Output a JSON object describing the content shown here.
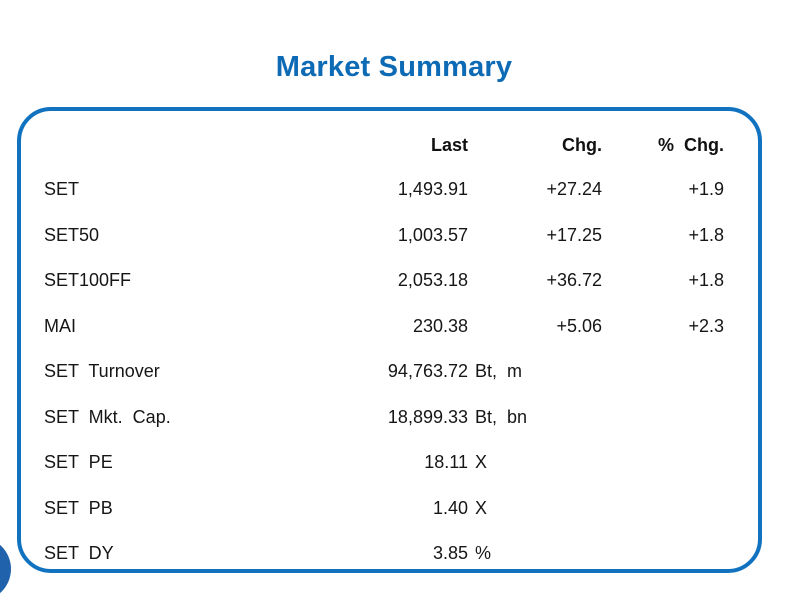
{
  "title": "Market Summary",
  "colors": {
    "title_blue": "#0d6ab5",
    "card_border_blue": "#1173bf",
    "edge_circle_blue": "#2063ac",
    "text_black": "#161616"
  },
  "table": {
    "headers": {
      "last": "Last",
      "chg": "Chg.",
      "pct": "% Chg."
    },
    "rows": [
      {
        "label": "SET",
        "last": "1,493.91",
        "unit": "",
        "chg": "+27.24",
        "pct": "+1.9"
      },
      {
        "label": "SET50",
        "last": "1,003.57",
        "unit": "",
        "chg": "+17.25",
        "pct": "+1.8"
      },
      {
        "label": "SET100FF",
        "last": "2,053.18",
        "unit": "",
        "chg": "+36.72",
        "pct": "+1.8"
      },
      {
        "label": "MAI",
        "last": "230.38",
        "unit": "",
        "chg": "+5.06",
        "pct": "+2.3"
      },
      {
        "label": "SET Turnover",
        "last": "94,763.72",
        "unit": "Bt, m",
        "chg": "",
        "pct": ""
      },
      {
        "label": "SET Mkt. Cap.",
        "last": "18,899.33",
        "unit": "Bt, bn",
        "chg": "",
        "pct": ""
      },
      {
        "label": "SET PE",
        "last": "18.11",
        "unit": "X",
        "chg": "",
        "pct": ""
      },
      {
        "label": "SET PB",
        "last": "1.40",
        "unit": "X",
        "chg": "",
        "pct": ""
      },
      {
        "label": "SET DY",
        "last": "3.85",
        "unit": "%",
        "chg": "",
        "pct": ""
      }
    ]
  }
}
